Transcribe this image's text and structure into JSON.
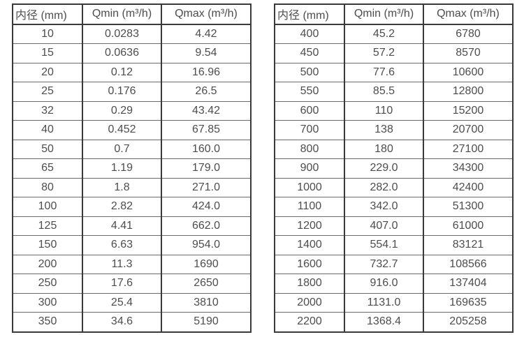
{
  "page": {
    "background": "#ffffff",
    "text_color": "#4d4d4d",
    "border_strong": "#3a3a3a",
    "border_light": "#6a6a6a"
  },
  "tables": [
    {
      "name": "flow-rate-table-dn10-350",
      "headers": [
        "内径 (mm)",
        "Qmin (m³/h)",
        "Qmax (m³/h)"
      ],
      "rows": [
        [
          "10",
          "0.0283",
          "4.42"
        ],
        [
          "15",
          "0.0636",
          "9.54"
        ],
        [
          "20",
          "0.12",
          "16.96"
        ],
        [
          "25",
          "0.176",
          "26.5"
        ],
        [
          "32",
          "0.29",
          "43.42"
        ],
        [
          "40",
          "0.452",
          "67.85"
        ],
        [
          "50",
          "0.7",
          "160.0"
        ],
        [
          "65",
          "1.19",
          "179.0"
        ],
        [
          "80",
          "1.8",
          "271.0"
        ],
        [
          "100",
          "2.82",
          "424.0"
        ],
        [
          "125",
          "4.41",
          "662.0"
        ],
        [
          "150",
          "6.63",
          "954.0"
        ],
        [
          "200",
          "11.3",
          "1690"
        ],
        [
          "250",
          "17.6",
          "2650"
        ],
        [
          "300",
          "25.4",
          "3810"
        ],
        [
          "350",
          "34.6",
          "5190"
        ]
      ]
    },
    {
      "name": "flow-rate-table-dn400-2200",
      "headers": [
        "内径 (mm)",
        "Qmin (m³/h)",
        "Qmax (m³/h)"
      ],
      "rows": [
        [
          "400",
          "45.2",
          "6780"
        ],
        [
          "450",
          "57.2",
          "8570"
        ],
        [
          "500",
          "77.6",
          "10600"
        ],
        [
          "550",
          "85.5",
          "12800"
        ],
        [
          "600",
          "110",
          "15200"
        ],
        [
          "700",
          "138",
          "20700"
        ],
        [
          "800",
          "180",
          "27100"
        ],
        [
          "900",
          "229.0",
          "34300"
        ],
        [
          "1000",
          "282.0",
          "42400"
        ],
        [
          "1100",
          "342.0",
          "51300"
        ],
        [
          "1200",
          "407.0",
          "61000"
        ],
        [
          "1400",
          "554.1",
          "83121"
        ],
        [
          "1600",
          "732.7",
          "108566"
        ],
        [
          "1800",
          "916.0",
          "137404"
        ],
        [
          "2000",
          "1131.0",
          "169635"
        ],
        [
          "2200",
          "1368.4",
          "205258"
        ]
      ]
    }
  ]
}
